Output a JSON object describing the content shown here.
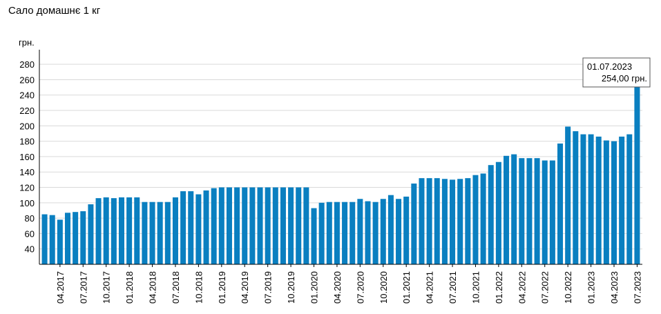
{
  "chart_data": {
    "type": "bar",
    "title": "Сало домашнє 1 кг",
    "ylabel": "грн.",
    "xlabel": "",
    "ylim": [
      20,
      290
    ],
    "yticks": [
      40,
      60,
      80,
      100,
      120,
      140,
      160,
      180,
      200,
      220,
      240,
      260,
      280
    ],
    "grid": true,
    "bar_color": "#0a7fc0",
    "categories": [
      "02.2017",
      "03.2017",
      "04.2017",
      "05.2017",
      "06.2017",
      "07.2017",
      "08.2017",
      "09.2017",
      "10.2017",
      "11.2017",
      "12.2017",
      "01.2018",
      "02.2018",
      "03.2018",
      "04.2018",
      "05.2018",
      "06.2018",
      "07.2018",
      "08.2018",
      "09.2018",
      "10.2018",
      "11.2018",
      "12.2018",
      "01.2019",
      "02.2019",
      "03.2019",
      "04.2019",
      "05.2019",
      "06.2019",
      "07.2019",
      "08.2019",
      "09.2019",
      "10.2019",
      "11.2019",
      "12.2019",
      "01.2020",
      "02.2020",
      "03.2020",
      "04.2020",
      "05.2020",
      "06.2020",
      "07.2020",
      "08.2020",
      "09.2020",
      "10.2020",
      "11.2020",
      "12.2020",
      "01.2021",
      "02.2021",
      "03.2021",
      "04.2021",
      "05.2021",
      "06.2021",
      "07.2021",
      "08.2021",
      "09.2021",
      "10.2021",
      "11.2021",
      "12.2021",
      "01.2022",
      "02.2022",
      "03.2022",
      "04.2022",
      "05.2022",
      "06.2022",
      "07.2022",
      "08.2022",
      "09.2022",
      "10.2022",
      "11.2022",
      "12.2022",
      "01.2023",
      "02.2023",
      "03.2023",
      "04.2023",
      "05.2023",
      "06.2023",
      "07.2023"
    ],
    "values": [
      85,
      84,
      78,
      87,
      88,
      89,
      98,
      106,
      107,
      106,
      107,
      107,
      107,
      101,
      101,
      101,
      101,
      107,
      115,
      115,
      111,
      116,
      119,
      120,
      120,
      120,
      120,
      120,
      120,
      120,
      120,
      120,
      120,
      120,
      120,
      93,
      100,
      101,
      101,
      101,
      101,
      105,
      102,
      101,
      105,
      110,
      105,
      108,
      125,
      132,
      132,
      132,
      131,
      130,
      131,
      132,
      136,
      138,
      149,
      153,
      161,
      163,
      158,
      158,
      158,
      155,
      155,
      177,
      199,
      193,
      189,
      189,
      186,
      181,
      180,
      186,
      189,
      254
    ],
    "x_tick_labels": [
      "04.2017",
      "07.2017",
      "10.2017",
      "01.2018",
      "04.2018",
      "07.2018",
      "10.2018",
      "01.2019",
      "04.2019",
      "07.2019",
      "10.2019",
      "01.2020",
      "04.2020",
      "07.2020",
      "10.2020",
      "01.2021",
      "04.2021",
      "07.2021",
      "10.2021",
      "01.2022",
      "04.2022",
      "07.2022",
      "10.2022",
      "01.2023",
      "04.2023",
      "07.2023"
    ],
    "tooltip": {
      "date": "01.07.2023",
      "value_text": "254,00 грн."
    }
  }
}
